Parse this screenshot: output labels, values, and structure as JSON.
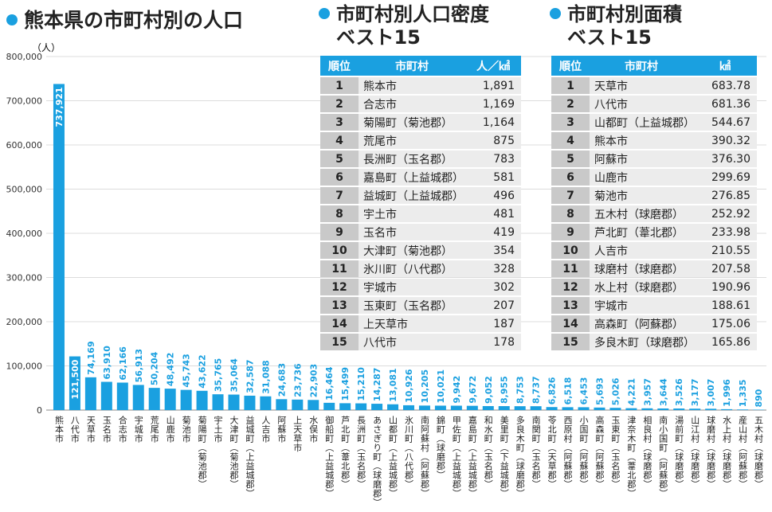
{
  "headings": {
    "main": "熊本県の市町村別の人口",
    "density_line1": "市町村別人口密度",
    "density_line2": "ベスト15",
    "area_line1": "市町村別面積",
    "area_line2": "ベスト15"
  },
  "colors": {
    "accent": "#1aa0e0",
    "rank_cell": "#c9c9c9",
    "row_cell": "#ececec"
  },
  "chart_data": {
    "type": "bar",
    "unit_label": "（人）",
    "ylim": [
      0,
      800000
    ],
    "yticks": [
      "800,000",
      "700,000",
      "600,000",
      "500,000",
      "400,000",
      "300,000",
      "200,000",
      "100,000",
      "0"
    ],
    "categories": [
      "熊本市",
      "八代市",
      "天草市",
      "玉名市",
      "合志市",
      "宇城市",
      "荒尾市",
      "山鹿市",
      "菊池市",
      "菊陽町（菊池郡）",
      "宇土市",
      "大津町（菊池郡）",
      "益城町（上益城郡）",
      "人吉市",
      "阿蘇市",
      "上天草市",
      "水俣市",
      "御船町（上益城郡）",
      "芦北町（葦北郡）",
      "長洲町（玉名郡）",
      "あさぎり町（球磨郡）",
      "山都町（上益城郡）",
      "氷川町（八代郡）",
      "南阿蘇村（阿蘇郡）",
      "錦町（球磨郡）",
      "甲佐町（上益城郡）",
      "嘉島町（上益城郡）",
      "和水町（玉名郡）",
      "美里町（下益城郡）",
      "多良木町（球磨郡）",
      "南関町（玉名郡）",
      "苓北町（天草郡）",
      "西原村（阿蘇郡）",
      "小国町（阿蘇郡）",
      "高森町（阿蘇郡）",
      "玉東町（玉名郡）",
      "津奈木町（葦北郡）",
      "相良村（球磨郡）",
      "南小国町（阿蘇郡）",
      "湯前町（球磨郡）",
      "山江村（球磨郡）",
      "球磨村（球磨郡）",
      "水上村（球磨郡）",
      "産山村（阿蘇郡）",
      "五木村（球磨郡）"
    ],
    "values": [
      737921,
      121500,
      74169,
      63910,
      62166,
      56913,
      50204,
      48492,
      45743,
      43622,
      35765,
      35064,
      32587,
      31088,
      24683,
      23736,
      22903,
      16464,
      15499,
      15210,
      14287,
      13081,
      10926,
      10205,
      10021,
      9942,
      9672,
      9052,
      8955,
      8753,
      8737,
      6826,
      6518,
      6453,
      5693,
      5026,
      4221,
      3957,
      3644,
      3526,
      3177,
      3007,
      1996,
      1335,
      890
    ],
    "value_labels": [
      "737,921",
      "121,500",
      "74,169",
      "63,910",
      "62,166",
      "56,913",
      "50,204",
      "48,492",
      "45,743",
      "43,622",
      "35,765",
      "35,064",
      "32,587",
      "31,088",
      "24,683",
      "23,736",
      "22,903",
      "16,464",
      "15,499",
      "15,210",
      "14,287",
      "13,081",
      "10,926",
      "10,205",
      "10,021",
      "9,942",
      "9,672",
      "9,052",
      "8,955",
      "8,753",
      "8,737",
      "6,826",
      "6,518",
      "6,453",
      "5,693",
      "5,026",
      "4,221",
      "3,957",
      "3,644",
      "3,526",
      "3,177",
      "3,007",
      "1,996",
      "1,335",
      "890"
    ]
  },
  "density_table": {
    "headers": [
      "順位",
      "市町村",
      "人／㎢"
    ],
    "rows": [
      [
        "1",
        "熊本市",
        "1,891"
      ],
      [
        "2",
        "合志市",
        "1,169"
      ],
      [
        "3",
        "菊陽町（菊池郡）",
        "1,164"
      ],
      [
        "4",
        "荒尾市",
        "875"
      ],
      [
        "5",
        "長洲町（玉名郡）",
        "783"
      ],
      [
        "6",
        "嘉島町（上益城郡）",
        "581"
      ],
      [
        "7",
        "益城町（上益城郡）",
        "496"
      ],
      [
        "8",
        "宇土市",
        "481"
      ],
      [
        "9",
        "玉名市",
        "419"
      ],
      [
        "10",
        "大津町（菊池郡）",
        "354"
      ],
      [
        "11",
        "氷川町（八代郡）",
        "328"
      ],
      [
        "12",
        "宇城市",
        "302"
      ],
      [
        "13",
        "玉東町（玉名郡）",
        "207"
      ],
      [
        "14",
        "上天草市",
        "187"
      ],
      [
        "15",
        "八代市",
        "178"
      ]
    ]
  },
  "area_table": {
    "headers": [
      "順位",
      "市町村",
      "㎢"
    ],
    "rows": [
      [
        "1",
        "天草市",
        "683.78"
      ],
      [
        "2",
        "八代市",
        "681.36"
      ],
      [
        "3",
        "山都町（上益城郡）",
        "544.67"
      ],
      [
        "4",
        "熊本市",
        "390.32"
      ],
      [
        "5",
        "阿蘇市",
        "376.30"
      ],
      [
        "6",
        "山鹿市",
        "299.69"
      ],
      [
        "7",
        "菊池市",
        "276.85"
      ],
      [
        "8",
        "五木村（球磨郡）",
        "252.92"
      ],
      [
        "9",
        "芦北町（葦北郡）",
        "233.98"
      ],
      [
        "10",
        "人吉市",
        "210.55"
      ],
      [
        "11",
        "球磨村（球磨郡）",
        "207.58"
      ],
      [
        "12",
        "水上村（球磨郡）",
        "190.96"
      ],
      [
        "13",
        "宇城市",
        "188.61"
      ],
      [
        "14",
        "高森町（阿蘇郡）",
        "175.06"
      ],
      [
        "15",
        "多良木町（球磨郡）",
        "165.86"
      ]
    ]
  }
}
